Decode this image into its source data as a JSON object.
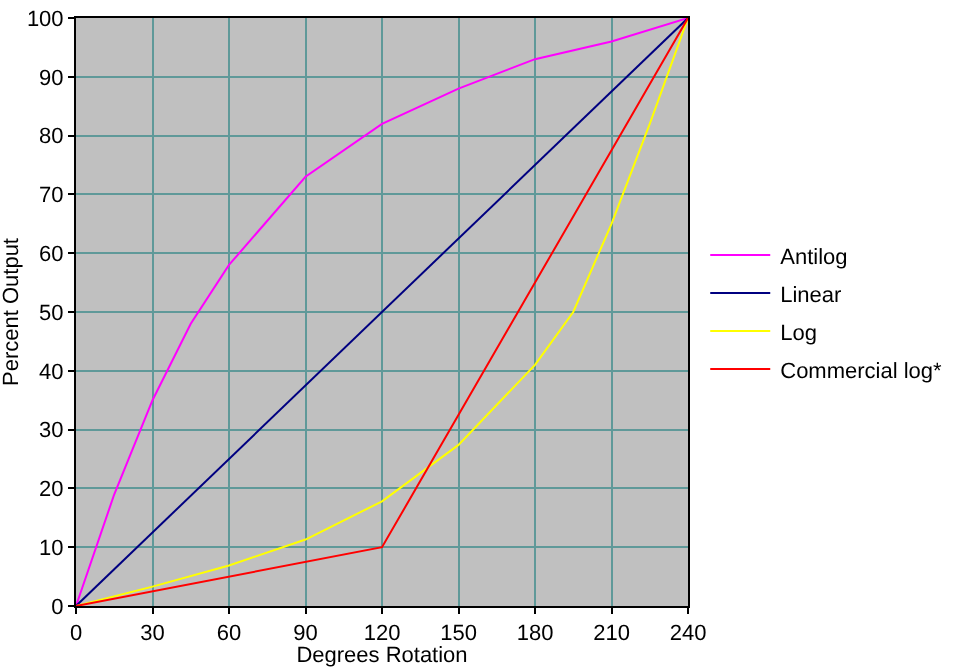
{
  "chart_data": {
    "type": "line",
    "xlabel": "Degrees Rotation",
    "ylabel": "Percent Output",
    "xlim": [
      0,
      240
    ],
    "xticks": [
      0,
      30,
      60,
      90,
      120,
      150,
      180,
      210,
      240
    ],
    "ylim": [
      0,
      100
    ],
    "yticks": [
      0,
      10,
      20,
      30,
      40,
      50,
      60,
      70,
      80,
      90,
      100
    ],
    "grid": true,
    "legend": "right",
    "marker": "none",
    "line_style": "solid",
    "series": [
      {
        "name": "Antilog",
        "color": "#ff00ff",
        "x": [
          0,
          15,
          30,
          45,
          60,
          90,
          120,
          150,
          180,
          210,
          240
        ],
        "values": [
          0,
          19,
          35,
          48,
          58,
          73,
          82,
          88,
          93,
          96,
          100
        ]
      },
      {
        "name": "Linear",
        "color": "#000080",
        "x": [
          0,
          240
        ],
        "values": [
          0,
          100
        ]
      },
      {
        "name": "Log",
        "color": "#ffff00",
        "x": [
          0,
          30,
          60,
          90,
          120,
          150,
          180,
          195,
          210,
          225,
          240
        ],
        "values": [
          0,
          3.3,
          6.9,
          11.3,
          17.8,
          27.4,
          41,
          50,
          65,
          82,
          100
        ]
      },
      {
        "name": "Commercial log*",
        "color": "#ff0000",
        "x": [
          0,
          120,
          240
        ],
        "values": [
          0,
          10,
          100
        ]
      }
    ]
  }
}
